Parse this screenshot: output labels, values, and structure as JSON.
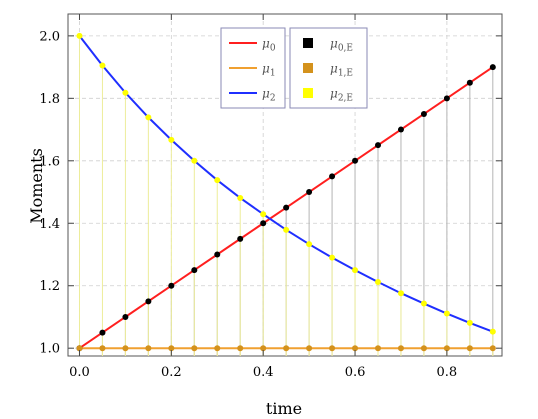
{
  "chart_data": {
    "type": "line",
    "xlabel": "time",
    "ylabel": "Moments",
    "xlim": [
      -0.025,
      0.92
    ],
    "ylim": [
      0.975,
      2.07
    ],
    "x_ticks": [
      0.0,
      0.2,
      0.4,
      0.6,
      0.8
    ],
    "x_tick_labels": [
      "0.0",
      "0.2",
      "0.4",
      "0.6",
      "0.8"
    ],
    "y_ticks": [
      1.0,
      1.2,
      1.4,
      1.6,
      1.8,
      2.0
    ],
    "y_tick_labels": [
      "1.0",
      "1.2",
      "1.4",
      "1.6",
      "1.8",
      "2.0"
    ],
    "grid": true,
    "x": [
      0.0,
      0.05,
      0.1,
      0.15,
      0.2,
      0.25,
      0.3,
      0.35,
      0.4,
      0.45,
      0.5,
      0.55,
      0.6,
      0.65,
      0.7,
      0.75,
      0.8,
      0.85,
      0.9
    ],
    "series": [
      {
        "name": "μ0",
        "kind": "line",
        "color": "#ff1f1f",
        "values": [
          1.0,
          1.05,
          1.1,
          1.15,
          1.2,
          1.25,
          1.3,
          1.35,
          1.4,
          1.45,
          1.5,
          1.55,
          1.6,
          1.65,
          1.7,
          1.75,
          1.8,
          1.85,
          1.9
        ]
      },
      {
        "name": "μ1",
        "kind": "line",
        "color": "#f0a030",
        "values": [
          1.0,
          1.0,
          1.0,
          1.0,
          1.0,
          1.0,
          1.0,
          1.0,
          1.0,
          1.0,
          1.0,
          1.0,
          1.0,
          1.0,
          1.0,
          1.0,
          1.0,
          1.0,
          1.0
        ]
      },
      {
        "name": "μ2",
        "kind": "line",
        "color": "#1f2fff",
        "values": [
          2.0,
          1.905,
          1.818,
          1.739,
          1.667,
          1.6,
          1.538,
          1.481,
          1.429,
          1.379,
          1.333,
          1.29,
          1.25,
          1.212,
          1.176,
          1.143,
          1.111,
          1.081,
          1.053
        ]
      },
      {
        "name": "μ0,E",
        "kind": "stem",
        "color": "#000000",
        "values": [
          1.0,
          1.05,
          1.1,
          1.15,
          1.2,
          1.25,
          1.3,
          1.35,
          1.4,
          1.45,
          1.5,
          1.55,
          1.6,
          1.65,
          1.7,
          1.75,
          1.8,
          1.85,
          1.9
        ]
      },
      {
        "name": "μ1,E",
        "kind": "stem",
        "color": "#d4921c",
        "values": [
          1.0,
          1.0,
          1.0,
          1.0,
          1.0,
          1.0,
          1.0,
          1.0,
          1.0,
          1.0,
          1.0,
          1.0,
          1.0,
          1.0,
          1.0,
          1.0,
          1.0,
          1.0,
          1.0
        ]
      },
      {
        "name": "μ2,E",
        "kind": "stem",
        "color": "#ffff00",
        "values": [
          2.0,
          1.905,
          1.818,
          1.739,
          1.667,
          1.6,
          1.538,
          1.481,
          1.429,
          1.379,
          1.333,
          1.29,
          1.25,
          1.212,
          1.176,
          1.143,
          1.111,
          1.081,
          1.053
        ]
      }
    ],
    "legend": [
      {
        "base": "μ",
        "sub": "0",
        "color": "#ff1f1f",
        "kind": "line"
      },
      {
        "base": "μ",
        "sub": "1",
        "color": "#f0a030",
        "kind": "line"
      },
      {
        "base": "μ",
        "sub": "2",
        "color": "#1f2fff",
        "kind": "line"
      },
      {
        "base": "μ",
        "sub": "0,E",
        "color": "#000000",
        "kind": "box"
      },
      {
        "base": "μ",
        "sub": "1,E",
        "color": "#d4921c",
        "kind": "box"
      },
      {
        "base": "μ",
        "sub": "2,E",
        "color": "#ffff00",
        "kind": "box"
      }
    ],
    "legend_position": "top-right"
  }
}
